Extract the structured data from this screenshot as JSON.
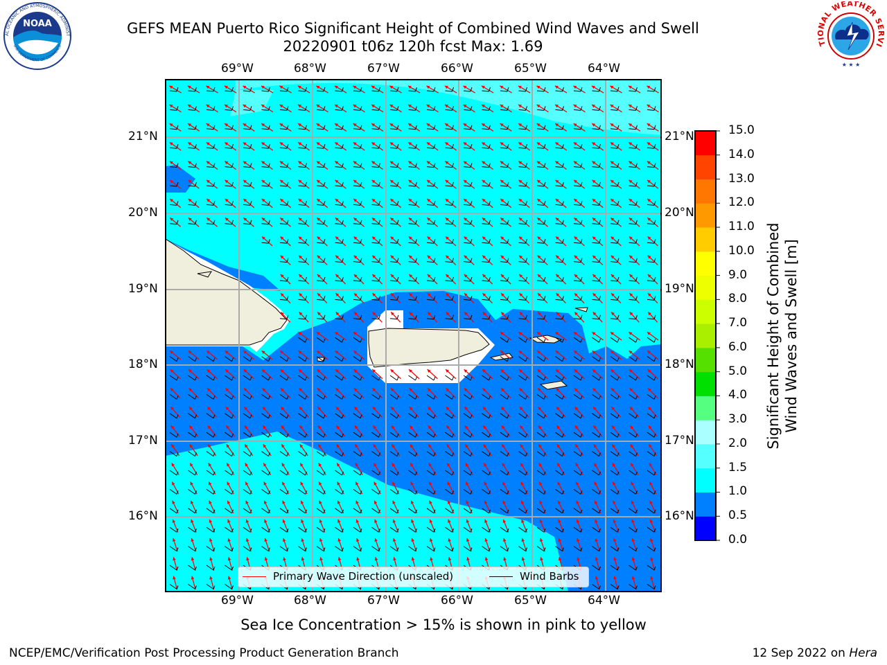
{
  "header": {
    "title_line1": "GEFS MEAN Puerto Rico Significant Height of Combined Wind Waves and Swell",
    "title_line2": "20220901 t06z 120h fcst   Max: 1.69"
  },
  "logos": {
    "noaa": {
      "text": "NOAA",
      "ring_text": "NATIONAL OCEANIC AND ATMOSPHERIC ADMINISTRATION",
      "bottom_text": "U.S. DEPARTMENT OF COMMERCE"
    },
    "nws": {
      "ring_text": "NATIONAL WEATHER SERVICE"
    }
  },
  "map": {
    "lon_labels": [
      "69°W",
      "68°W",
      "67°W",
      "66°W",
      "65°W",
      "64°W"
    ],
    "lat_labels": [
      "21°N",
      "20°N",
      "19°N",
      "18°N",
      "17°N",
      "16°N"
    ],
    "lon_range": [
      -70.0,
      -63.25
    ],
    "lat_range": [
      15.0,
      21.75
    ],
    "lon_ticks": [
      -69,
      -68,
      -67,
      -66,
      -65,
      -64
    ],
    "lat_ticks": [
      21,
      20,
      19,
      18,
      17,
      16
    ],
    "gridlines": true,
    "colors": {
      "land": "#f0eedc",
      "coast": "#000000",
      "grid": "#aaaaaa",
      "wave_arrow": "#ff0000",
      "wind_barb": "#000000"
    }
  },
  "colorbar": {
    "title": "Significant Height of Combined Wind Waves and Swell [m]",
    "title_line1": "Significant Height of Combined",
    "title_line2": "Wind Waves and Swell [m]",
    "levels": [
      "0.0",
      "0.5",
      "1.0",
      "1.5",
      "2.0",
      "3.0",
      "4.0",
      "5.0",
      "6.0",
      "7.0",
      "8.0",
      "9.0",
      "10.0",
      "11.0",
      "12.0",
      "13.0",
      "14.0",
      "15.0"
    ],
    "colors": [
      "#0000ff",
      "#0080ff",
      "#00ffff",
      "#55ffff",
      "#aaffff",
      "#55ff80",
      "#00e000",
      "#55e000",
      "#aaee00",
      "#ccff00",
      "#eeff00",
      "#ffff00",
      "#ffcc00",
      "#ff9900",
      "#ff7700",
      "#ff4400",
      "#ff0000"
    ]
  },
  "legend": {
    "items": [
      {
        "label": "Primary Wave Direction (unscaled)",
        "color": "#ff0000"
      },
      {
        "label": "Wind Barbs",
        "color": "#000000"
      }
    ]
  },
  "notes": {
    "ice": "Sea Ice Concentration > 15% is shown in pink to yellow"
  },
  "footer": {
    "left": "NCEP/EMC/Verification Post Processing Product Generation Branch",
    "right_date": "12 Sep 2022 on ",
    "right_host": "Hera"
  }
}
